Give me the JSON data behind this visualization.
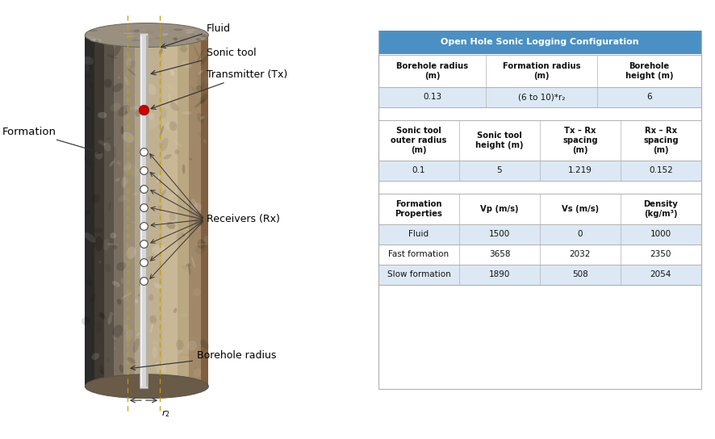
{
  "title_header": "Open Hole Sonic Logging Configuration",
  "header_bg": "#4a90c4",
  "header_text_color": "#ffffff",
  "row_alt_color": "#dce9f5",
  "row_white": "#ffffff",
  "border_color": "#b0b0b0",
  "table1_headers": [
    "Borehole radius\n(m)",
    "Formation radius\n(m)",
    "Borehole\nheight (m)"
  ],
  "table1_data": [
    [
      "0.13",
      "(6 to 10)*r₂",
      "6"
    ]
  ],
  "table2_headers": [
    "Sonic tool\nouter radius\n(m)",
    "Sonic tool\nheight (m)",
    "Tx – Rx\nspacing\n(m)",
    "Rx – Rx\nspacing\n(m)"
  ],
  "table2_data": [
    [
      "0.1",
      "5",
      "1.219",
      "0.152"
    ]
  ],
  "table3_headers": [
    "Formation\nProperties",
    "Vp (m/s)",
    "Vs (m/s)",
    "Density\n(kg/m³)"
  ],
  "table3_data": [
    [
      "Fluid",
      "1500",
      "0",
      "1000"
    ],
    [
      "Fast formation",
      "3658",
      "2032",
      "2350"
    ],
    [
      "Slow formation",
      "1890",
      "508",
      "2054"
    ]
  ],
  "figure_bg": "#ffffff",
  "cylinder_dark_left": "#3a3a3a",
  "cylinder_mid": "#7a7060",
  "cylinder_tan": "#b8a880",
  "cylinder_light": "#c8b890",
  "cylinder_right_edge": "#806850",
  "tool_color": "#d0d0d0",
  "tool_edge": "#999999",
  "dashed_line_color": "#c8a000",
  "transmitter_color": "#cc0000",
  "receiver_face": "#ffffff",
  "receiver_edge": "#555555",
  "arrow_color": "#333333",
  "label_fontsize": 9,
  "table_fontsize": 7.5,
  "header_fontsize": 8.0
}
